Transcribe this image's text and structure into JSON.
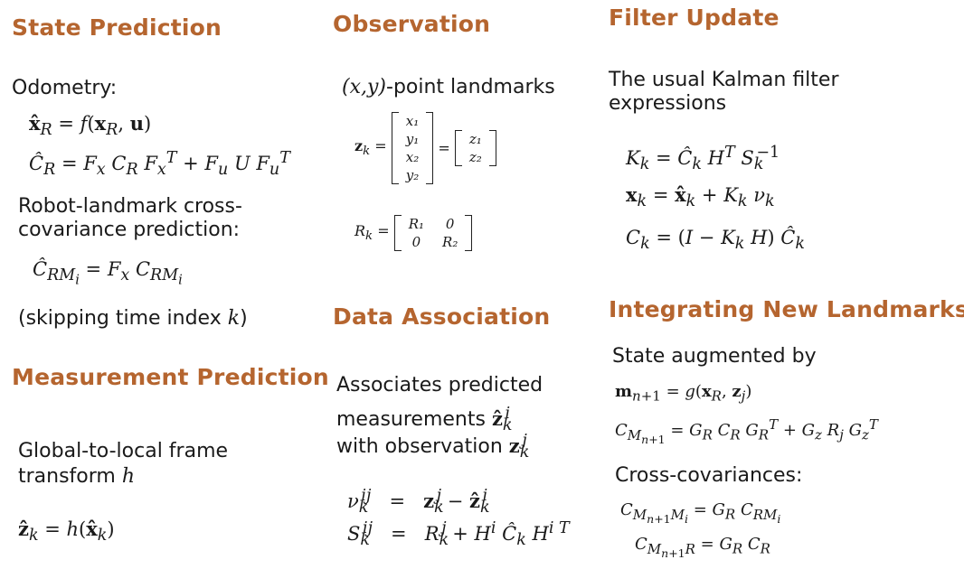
{
  "col1": {
    "heading": "State Prediction",
    "odometry_label": "Odometry:",
    "eq1": "x̂_R = f(x_R, u)",
    "eq2": "Ĉ_R = F_x C_R F_x^T + F_u U F_u^T",
    "cross_label_line1": "Robot-landmark cross-",
    "cross_label_line2": "covariance prediction:",
    "eq3": "Ĉ_RMᵢ = F_x C_RMᵢ",
    "skip_text": "(skipping time index ",
    "skip_var": "k",
    "skip_end": ")",
    "meas_heading": "Measurement Prediction",
    "frame_line1": "Global-to-local  frame",
    "frame_line2": "transform ",
    "frame_var": "h",
    "eq4": "ẑ_k = h(x̂_k)"
  },
  "col2": {
    "heading": "Observation",
    "landmark_prefix": "(x,y)",
    "landmark_text": "-point landmarks",
    "zk_label": "z_k =",
    "zk_vector": [
      "x₁",
      "y₁",
      "x₂",
      "y₂"
    ],
    "eq_sign": "=",
    "z_vector": [
      "z₁",
      "z₂"
    ],
    "rk_label": "R_k =",
    "rk_matrix": [
      [
        "R₁",
        "0"
      ],
      [
        "0",
        "R₂"
      ]
    ],
    "da_heading": "Data Association",
    "assoc_line1": "Associates predicted",
    "assoc_line2": "measurements ",
    "assoc_sym1": "ẑ_k^i",
    "assoc_line3": "with observation ",
    "assoc_sym2": "z_k^j",
    "eq_nu": "ν_k^ij  =  z_k^j − ẑ_k^i",
    "eq_s": "S_k^ij  =  R_k^j + H^i Ĉ_k H^iT"
  },
  "col3": {
    "heading": "Filter Update",
    "usual_line1": "The usual Kalman  filter",
    "usual_line2": "expressions",
    "eq_k": "K_k = Ĉ_k H^T S_k^−1",
    "eq_x": "x_k = x̂_k + K_k ν_k",
    "eq_c": "C_k = (I − K_k H) Ĉ_k",
    "int_heading": "Integrating New Landmarks",
    "aug_label": "State augmented by",
    "eq_m": "m_n+1 = g(x_R, z_j)",
    "eq_cm": "C_Mn+1 = G_R C_R G_R^T + G_z R_j G_z^T",
    "cross_label": "Cross-covariances:",
    "eq_cmm": "C_Mn+1Mᵢ = G_R C_RMᵢ",
    "eq_cmr": "C_Mn+1R = G_R C_R"
  }
}
